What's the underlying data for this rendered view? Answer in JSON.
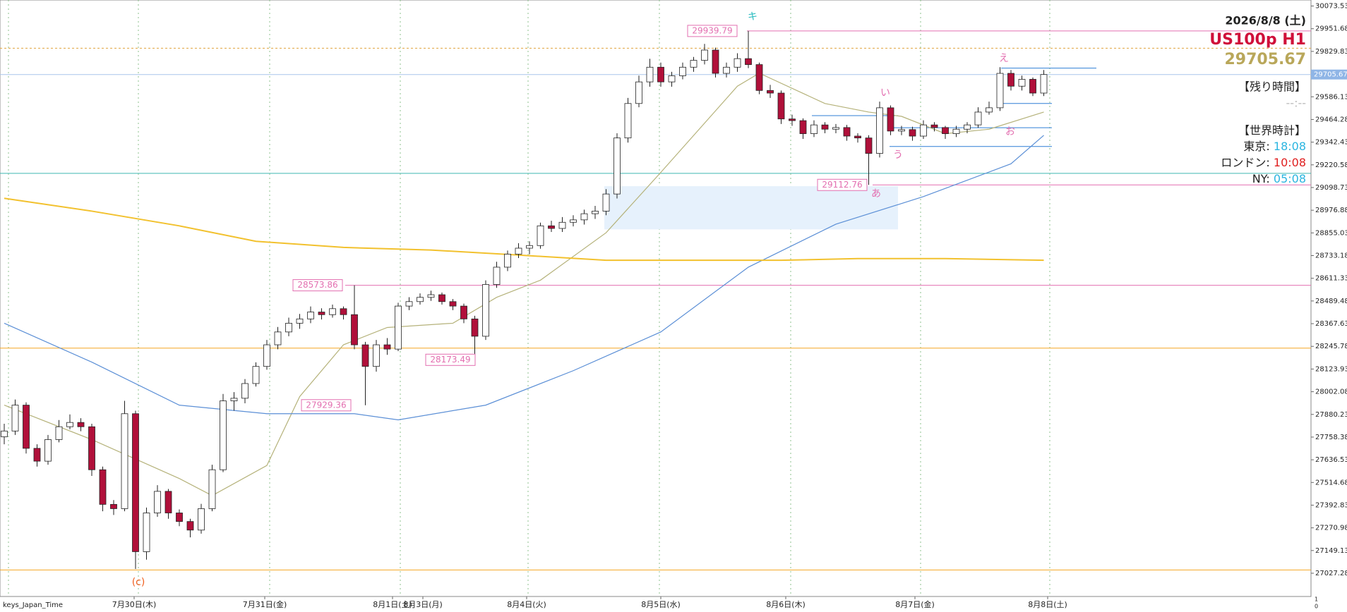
{
  "chart_data": {
    "type": "candlestick",
    "ylim": [
      26902.3,
      30105.9
    ],
    "yticks": [
      30073.53,
      29951.68,
      29829.83,
      29586.13,
      29464.28,
      29342.43,
      29220.58,
      29098.73,
      28976.88,
      28855.03,
      28733.18,
      28611.33,
      28489.48,
      28367.63,
      28245.78,
      28123.93,
      28002.08,
      27880.23,
      27758.38,
      27636.53,
      27514.68,
      27392.83,
      27270.98,
      27149.13,
      27027.28
    ],
    "current_price": 29705.67,
    "up_color": "#ffffff",
    "down_color": "#b0103a",
    "date_labels": [
      "7月30日(木)",
      "7月31日(金)",
      "8月1日(土)",
      "8月3日(月)",
      "8月4日(火)",
      "8月5日(水)",
      "8月6日(木)",
      "8月7日(金)",
      "8月8日(土)"
    ],
    "time_zone_label": "keys_Japan_Time",
    "axis_corner": [
      "1",
      "0"
    ],
    "candles": [
      [
        27760,
        27830,
        27720,
        27791
      ],
      [
        27791,
        27960,
        27770,
        27930
      ],
      [
        27930,
        27945,
        27670,
        27698
      ],
      [
        27698,
        27720,
        27600,
        27629
      ],
      [
        27629,
        27770,
        27610,
        27745
      ],
      [
        27745,
        27850,
        27730,
        27814
      ],
      [
        27814,
        27880,
        27800,
        27837
      ],
      [
        27837,
        27860,
        27790,
        27814
      ],
      [
        27814,
        27830,
        27550,
        27583
      ],
      [
        27583,
        27600,
        27360,
        27397
      ],
      [
        27397,
        27420,
        27340,
        27374
      ],
      [
        27374,
        27953,
        27360,
        27884
      ],
      [
        27884,
        27900,
        27050,
        27143
      ],
      [
        27143,
        27380,
        27100,
        27351
      ],
      [
        27351,
        27500,
        27330,
        27467
      ],
      [
        27467,
        27480,
        27320,
        27351
      ],
      [
        27351,
        27370,
        27280,
        27305
      ],
      [
        27305,
        27320,
        27220,
        27259
      ],
      [
        27259,
        27400,
        27240,
        27374
      ],
      [
        27374,
        27610,
        27360,
        27583
      ],
      [
        27583,
        27990,
        27570,
        27953
      ],
      [
        27953,
        28000,
        27900,
        27967
      ],
      [
        27967,
        28070,
        27940,
        28046
      ],
      [
        28046,
        28160,
        28030,
        28138
      ],
      [
        28138,
        28280,
        28120,
        28254
      ],
      [
        28254,
        28350,
        28230,
        28323
      ],
      [
        28323,
        28400,
        28300,
        28370
      ],
      [
        28370,
        28420,
        28340,
        28393
      ],
      [
        28393,
        28460,
        28370,
        28430
      ],
      [
        28430,
        28450,
        28390,
        28416
      ],
      [
        28416,
        28470,
        28400,
        28448
      ],
      [
        28448,
        28460,
        28390,
        28416
      ],
      [
        28416,
        28573.86,
        28230,
        28254
      ],
      [
        28254,
        28270,
        27929.36,
        28138
      ],
      [
        28138,
        28280,
        28110,
        28254
      ],
      [
        28254,
        28290,
        28200,
        28231
      ],
      [
        28231,
        28480,
        28220,
        28462
      ],
      [
        28462,
        28510,
        28440,
        28486
      ],
      [
        28486,
        28530,
        28470,
        28509
      ],
      [
        28509,
        28545,
        28490,
        28523
      ],
      [
        28523,
        28535,
        28470,
        28486
      ],
      [
        28486,
        28500,
        28440,
        28462
      ],
      [
        28462,
        28475,
        28370,
        28393
      ],
      [
        28393,
        28410,
        28173.49,
        28300
      ],
      [
        28300,
        28600,
        28280,
        28578
      ],
      [
        28578,
        28700,
        28560,
        28671
      ],
      [
        28671,
        28760,
        28650,
        28741
      ],
      [
        28741,
        28800,
        28720,
        28773
      ],
      [
        28773,
        28810,
        28740,
        28787
      ],
      [
        28787,
        28910,
        28770,
        28893
      ],
      [
        28893,
        28920,
        28860,
        28879
      ],
      [
        28879,
        28940,
        28860,
        28912
      ],
      [
        28912,
        28950,
        28890,
        28925
      ],
      [
        28925,
        28980,
        28900,
        28958
      ],
      [
        28958,
        29000,
        28930,
        28972
      ],
      [
        28972,
        29090,
        28950,
        29064
      ],
      [
        29064,
        29390,
        29040,
        29365
      ],
      [
        29365,
        29580,
        29340,
        29550
      ],
      [
        29550,
        29700,
        29530,
        29666
      ],
      [
        29666,
        29790,
        29640,
        29745
      ],
      [
        29745,
        29770,
        29640,
        29666
      ],
      [
        29666,
        29720,
        29640,
        29699
      ],
      [
        29699,
        29770,
        29680,
        29745
      ],
      [
        29745,
        29800,
        29720,
        29782
      ],
      [
        29782,
        29870,
        29760,
        29837
      ],
      [
        29837,
        29850,
        29690,
        29712
      ],
      [
        29712,
        29770,
        29690,
        29745
      ],
      [
        29745,
        29820,
        29720,
        29791
      ],
      [
        29791,
        29939.79,
        29740,
        29759
      ],
      [
        29759,
        29770,
        29600,
        29620
      ],
      [
        29620,
        29650,
        29580,
        29606
      ],
      [
        29606,
        29620,
        29440,
        29467
      ],
      [
        29467,
        29490,
        29430,
        29458
      ],
      [
        29458,
        29470,
        29360,
        29388
      ],
      [
        29388,
        29460,
        29370,
        29435
      ],
      [
        29435,
        29450,
        29390,
        29412
      ],
      [
        29412,
        29440,
        29390,
        29421
      ],
      [
        29421,
        29435,
        29350,
        29375
      ],
      [
        29375,
        29390,
        29340,
        29365
      ],
      [
        29365,
        29380,
        29112.76,
        29282
      ],
      [
        29282,
        29560,
        29260,
        29527
      ],
      [
        29527,
        29540,
        29380,
        29402
      ],
      [
        29402,
        29430,
        29380,
        29410
      ],
      [
        29410,
        29425,
        29350,
        29375
      ],
      [
        29375,
        29460,
        29360,
        29435
      ],
      [
        29435,
        29450,
        29400,
        29421
      ],
      [
        29421,
        29430,
        29360,
        29388
      ],
      [
        29388,
        29430,
        29370,
        29412
      ],
      [
        29412,
        29450,
        29390,
        29435
      ],
      [
        29435,
        29530,
        29420,
        29504
      ],
      [
        29504,
        29560,
        29490,
        29527
      ],
      [
        29527,
        29745,
        29510,
        29712
      ],
      [
        29712,
        29730,
        29620,
        29643
      ],
      [
        29643,
        29700,
        29620,
        29680
      ],
      [
        29680,
        29690,
        29590,
        29606
      ],
      [
        29606,
        29730,
        29590,
        29705.67
      ]
    ],
    "moving_averages": [
      {
        "color": "#b5b27a",
        "x": [
          0,
          8,
          16,
          19,
          24,
          27,
          31,
          35,
          41,
          45,
          49,
          55,
          60,
          67,
          69,
          75,
          79,
          82,
          86,
          90,
          95
        ],
        "values": [
          27930,
          27745,
          27536,
          27444,
          27606,
          27976,
          28254,
          28347,
          28370,
          28509,
          28601,
          28856,
          29180,
          29643,
          29713,
          29550,
          29504,
          29481,
          29388,
          29412,
          29504
        ]
      },
      {
        "color": "#5b8fd6",
        "x": [
          0,
          8,
          16,
          24,
          32,
          36,
          44,
          52,
          60,
          68,
          76,
          84,
          92,
          95
        ],
        "values": [
          28370,
          28161,
          27930,
          27884,
          27884,
          27851,
          27930,
          28115,
          28323,
          28671,
          28902,
          29050,
          29226,
          29379
        ]
      },
      {
        "color": "#f2c12e",
        "x": [
          0,
          8,
          16,
          23,
          31,
          39,
          47,
          55,
          63,
          71,
          78,
          86,
          95
        ],
        "values": [
          29041,
          28972,
          28893,
          28810,
          28777,
          28763,
          28736,
          28708,
          28708,
          28708,
          28717,
          28717,
          28708
        ]
      }
    ],
    "levels": [
      {
        "value": 29939.79,
        "color": "#e36fb0"
      },
      {
        "value": 29847,
        "color": "#e0a23c"
      },
      {
        "value": 29705.67,
        "color": "#a9c6ec"
      },
      {
        "value": 29175,
        "color": "#3fb7b0"
      },
      {
        "value": 29112.76,
        "color": "#e36fb0"
      },
      {
        "value": 28573.86,
        "color": "#e36fb0"
      },
      {
        "value": 28236,
        "color": "#f5a623"
      },
      {
        "value": 27045,
        "color": "#f5a623"
      }
    ],
    "segments": [
      29485,
      29420,
      29319,
      29740,
      29550
    ],
    "zone": [
      29106,
      28874
    ],
    "price_labels": [
      29939.79,
      28573.86,
      28173.49,
      27929.36,
      29112.76
    ],
    "wave_labels": [
      "キ",
      "い",
      "う",
      "あ",
      "え",
      "お",
      "(c)"
    ]
  },
  "info": {
    "date": "2026/8/8 (土)",
    "symbol": "US100p H1",
    "price": "29705.67",
    "remaining_title": "【残り時間】",
    "remaining": "--:--",
    "clock_title": "【世界時計】",
    "clocks": [
      {
        "city": "東京:",
        "time": "18:08"
      },
      {
        "city": "ロンドン:",
        "time": "10:08"
      },
      {
        "city": "NY:",
        "time": "05:08"
      }
    ]
  }
}
